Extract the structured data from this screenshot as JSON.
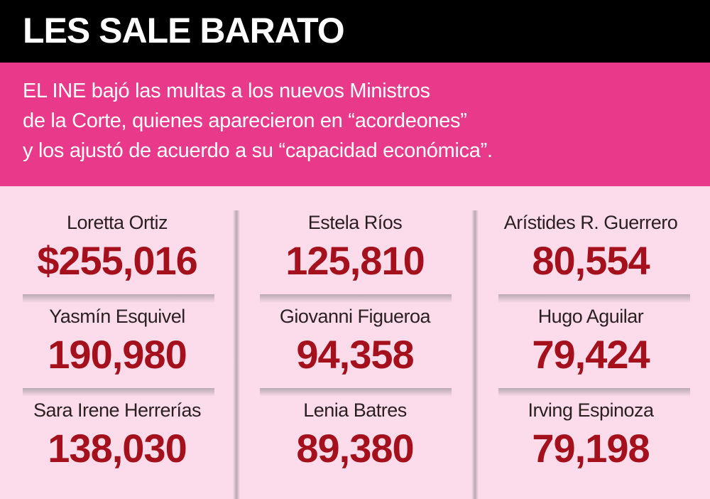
{
  "header": {
    "title": "LES SALE BARATO"
  },
  "subtitle": {
    "lines": [
      "EL INE bajó las multas a los nuevos Ministros",
      "de la Corte, quienes aparecieron en “acordeones”",
      "y los ajustó de acuerdo a su “capacidad económica”."
    ]
  },
  "columns": [
    {
      "items": [
        {
          "name": "Loretta Ortiz",
          "amount": "$255,016"
        },
        {
          "name": "Yasmín Esquivel",
          "amount": "190,980"
        },
        {
          "name": "Sara Irene Herrerías",
          "amount": "138,030"
        }
      ]
    },
    {
      "items": [
        {
          "name": "Estela Ríos",
          "amount": "125,810"
        },
        {
          "name": "Giovanni Figueroa",
          "amount": "94,358"
        },
        {
          "name": "Lenia Batres",
          "amount": "89,380"
        }
      ]
    },
    {
      "items": [
        {
          "name": "Arístides R. Guerrero",
          "amount": "80,554"
        },
        {
          "name": "Hugo Aguilar",
          "amount": "79,424"
        },
        {
          "name": "Irving Espinoza",
          "amount": "79,198"
        }
      ]
    }
  ]
}
